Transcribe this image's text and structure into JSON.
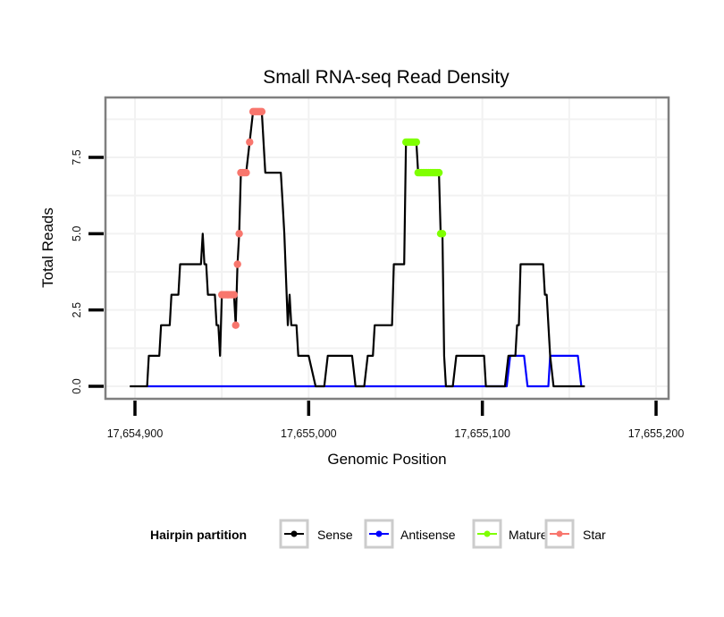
{
  "chart_data": {
    "type": "line",
    "title": "Small RNA-seq Read Density",
    "xlabel": "Genomic Position",
    "ylabel": "Total Reads",
    "xlim": [
      17654895,
      17655205
    ],
    "ylim": [
      -0.3,
      9.3
    ],
    "x_ticks": [
      17654900,
      17655000,
      17655100,
      17655200
    ],
    "x_tick_labels": [
      "17,654,900",
      "17,655,000",
      "17,655,100",
      "17,655,200"
    ],
    "y_ticks": [
      0,
      2.5,
      5,
      7.5
    ],
    "y_tick_labels": [
      "0.0",
      "2.5",
      "5.0",
      "7.5"
    ],
    "grid": true,
    "legend": {
      "title": "Hairpin partition",
      "position": "bottom",
      "entries": [
        "Sense",
        "Antisense",
        "Mature",
        "Star"
      ]
    },
    "series": [
      {
        "name": "Sense",
        "color": "#000000",
        "points": [
          [
            17654897,
            0
          ],
          [
            17654907,
            0
          ],
          [
            17654908,
            1
          ],
          [
            17654914,
            1
          ],
          [
            17654915,
            2
          ],
          [
            17654920,
            2
          ],
          [
            17654921,
            3
          ],
          [
            17654925,
            3
          ],
          [
            17654926,
            4
          ],
          [
            17654938,
            4
          ],
          [
            17654939,
            5
          ],
          [
            17654940,
            4
          ],
          [
            17654941,
            4
          ],
          [
            17654942,
            3
          ],
          [
            17654946,
            3
          ],
          [
            17654947,
            2
          ],
          [
            17654948,
            2
          ],
          [
            17654949,
            1
          ],
          [
            17654950,
            3
          ],
          [
            17654957,
            3
          ],
          [
            17654958,
            2
          ],
          [
            17654959,
            4
          ],
          [
            17654960,
            5
          ],
          [
            17654961,
            7
          ],
          [
            17654964,
            7
          ],
          [
            17654966,
            8
          ],
          [
            17654968,
            9
          ],
          [
            17654973,
            9
          ],
          [
            17654975,
            7
          ],
          [
            17654984,
            7
          ],
          [
            17654985,
            6
          ],
          [
            17654986,
            5
          ],
          [
            17654988,
            2
          ],
          [
            17654989,
            3
          ],
          [
            17654990,
            2
          ],
          [
            17654993,
            2
          ],
          [
            17654994,
            1
          ],
          [
            17654997,
            1
          ],
          [
            17655000,
            1
          ],
          [
            17655004,
            0
          ],
          [
            17655009,
            0
          ],
          [
            17655011,
            1
          ],
          [
            17655025,
            1
          ],
          [
            17655027,
            0
          ],
          [
            17655032,
            0
          ],
          [
            17655034,
            1
          ],
          [
            17655037,
            1
          ],
          [
            17655038,
            2
          ],
          [
            17655048,
            2
          ],
          [
            17655049,
            4
          ],
          [
            17655055,
            4
          ],
          [
            17655056,
            8
          ],
          [
            17655062,
            8
          ],
          [
            17655063,
            7
          ],
          [
            17655075,
            7
          ],
          [
            17655076,
            5
          ],
          [
            17655077,
            5
          ],
          [
            17655078,
            1
          ],
          [
            17655079,
            0
          ],
          [
            17655083,
            0
          ],
          [
            17655085,
            1
          ],
          [
            17655101,
            1
          ],
          [
            17655102,
            0
          ],
          [
            17655113,
            0
          ],
          [
            17655115,
            1
          ],
          [
            17655119,
            1
          ],
          [
            17655120,
            2
          ],
          [
            17655121,
            2
          ],
          [
            17655122,
            4
          ],
          [
            17655135,
            4
          ],
          [
            17655136,
            3
          ],
          [
            17655137,
            3
          ],
          [
            17655139,
            1
          ],
          [
            17655141,
            0
          ],
          [
            17655159,
            0
          ]
        ]
      },
      {
        "name": "Antisense",
        "color": "#0000ff",
        "points": [
          [
            17654907,
            0
          ],
          [
            17655114,
            0
          ],
          [
            17655116,
            1
          ],
          [
            17655124,
            1
          ],
          [
            17655126,
            0
          ],
          [
            17655138,
            0
          ],
          [
            17655139,
            1
          ],
          [
            17655155,
            1
          ],
          [
            17655157,
            0
          ]
        ]
      },
      {
        "name": "Mature",
        "color": "#7fff00",
        "points": [
          [
            17655056,
            8
          ],
          [
            17655057,
            8
          ],
          [
            17655058,
            8
          ],
          [
            17655059,
            8
          ],
          [
            17655060,
            8
          ],
          [
            17655061,
            8
          ],
          [
            17655062,
            8
          ],
          [
            17655063,
            7
          ],
          [
            17655064,
            7
          ],
          [
            17655065,
            7
          ],
          [
            17655066,
            7
          ],
          [
            17655067,
            7
          ],
          [
            17655068,
            7
          ],
          [
            17655069,
            7
          ],
          [
            17655070,
            7
          ],
          [
            17655071,
            7
          ],
          [
            17655072,
            7
          ],
          [
            17655073,
            7
          ],
          [
            17655074,
            7
          ],
          [
            17655075,
            7
          ],
          [
            17655076,
            5
          ],
          [
            17655077,
            5
          ]
        ]
      },
      {
        "name": "Star",
        "color": "#f8766d",
        "points": [
          [
            17654950,
            3
          ],
          [
            17654951,
            3
          ],
          [
            17654952,
            3
          ],
          [
            17654953,
            3
          ],
          [
            17654954,
            3
          ],
          [
            17654955,
            3
          ],
          [
            17654956,
            3
          ],
          [
            17654957,
            3
          ],
          [
            17654958,
            2
          ],
          [
            17654959,
            4
          ],
          [
            17654960,
            5
          ],
          [
            17654961,
            7
          ],
          [
            17654962,
            7
          ],
          [
            17654963,
            7
          ],
          [
            17654964,
            7
          ],
          [
            17654966,
            8
          ],
          [
            17654968,
            9
          ],
          [
            17654969,
            9
          ],
          [
            17654970,
            9
          ],
          [
            17654971,
            9
          ],
          [
            17654972,
            9
          ],
          [
            17654973,
            9
          ]
        ]
      }
    ]
  }
}
